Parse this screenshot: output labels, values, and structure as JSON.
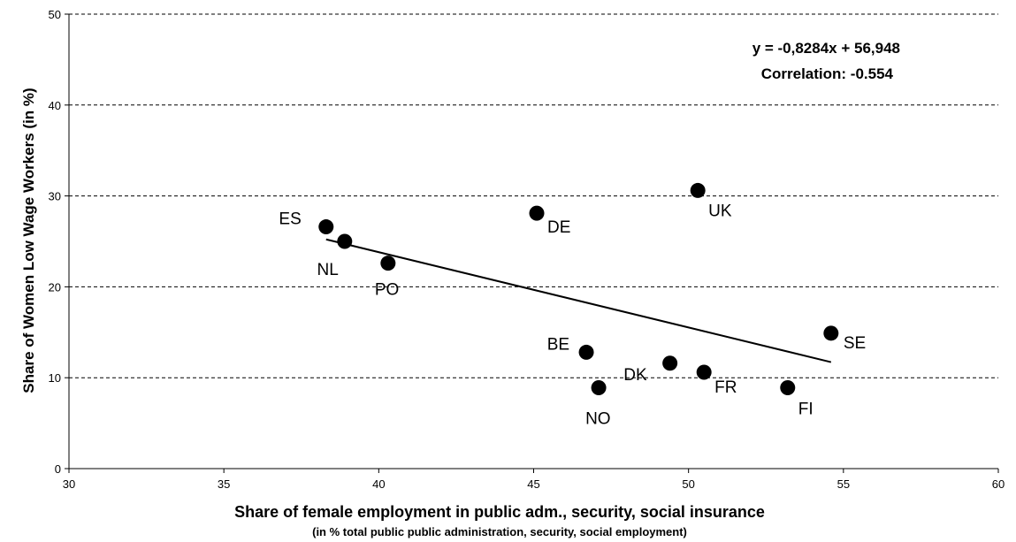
{
  "chart_data": {
    "type": "scatter",
    "xlabel": "Share of female employment in public adm., security, social insurance",
    "xlabel_sub": "(in % total public public administration, security, social employment)",
    "ylabel": "Share of Women Low Wage Workers (in %)",
    "xlim": [
      30,
      60
    ],
    "ylim": [
      0,
      50
    ],
    "x_ticks": [
      30,
      35,
      40,
      45,
      50,
      55,
      60
    ],
    "y_ticks": [
      0,
      10,
      20,
      30,
      40,
      50
    ],
    "grid": "horizontal-dashed",
    "points": [
      {
        "label": "ES",
        "x": 38.3,
        "y": 26.6
      },
      {
        "label": "NL",
        "x": 38.9,
        "y": 25.0
      },
      {
        "label": "PO",
        "x": 40.3,
        "y": 22.6
      },
      {
        "label": "DE",
        "x": 45.1,
        "y": 28.1
      },
      {
        "label": "UK",
        "x": 50.3,
        "y": 30.6
      },
      {
        "label": "BE",
        "x": 46.7,
        "y": 12.8
      },
      {
        "label": "NO",
        "x": 47.1,
        "y": 8.9
      },
      {
        "label": "DK",
        "x": 49.4,
        "y": 11.6
      },
      {
        "label": "FR",
        "x": 50.5,
        "y": 10.6
      },
      {
        "label": "FI",
        "x": 53.2,
        "y": 8.9
      },
      {
        "label": "SE",
        "x": 54.6,
        "y": 14.9
      }
    ],
    "trendline": {
      "slope": -0.8284,
      "intercept": 56.948,
      "x_range": [
        38.3,
        54.6
      ]
    },
    "annotations": [
      "y = -0,8284x + 56,948",
      "Correlation: -0.554"
    ]
  }
}
